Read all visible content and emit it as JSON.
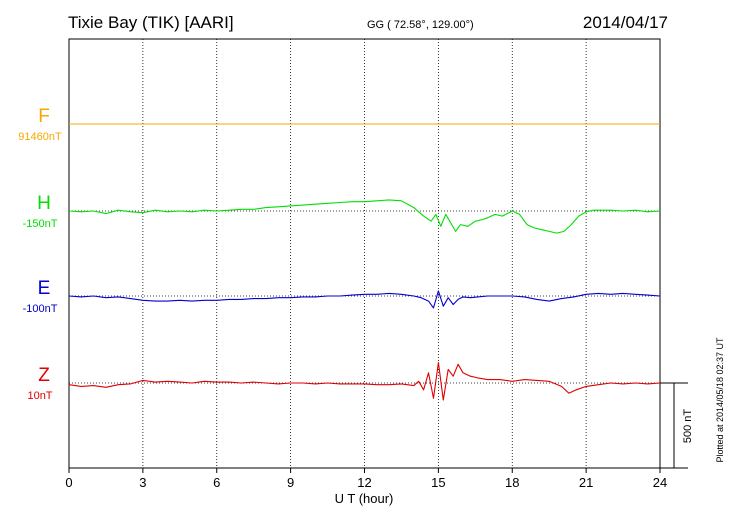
{
  "chart_data": {
    "type": "line",
    "title": "Tixie Bay (TIK)  [AARI]",
    "coords": "GG ( 72.58°, 129.00°)",
    "date": "2014/04/17",
    "xlabel": "U T (hour)",
    "xlim": [
      0,
      24
    ],
    "x_ticks": [
      0,
      3,
      6,
      9,
      12,
      15,
      18,
      21,
      24
    ],
    "x_tick_labels": [
      "0",
      "3",
      "6",
      "9",
      "12",
      "15",
      "18",
      "21",
      "24"
    ],
    "grid": true,
    "scale_bar_label": "500 nT",
    "scale_bar_nT": 500,
    "plotted_note": "Plotted at 2014/05/18 02:37 UT",
    "series": [
      {
        "name": "F",
        "base_label": "91460nT",
        "base_nT": 91460,
        "color": "#f5a800",
        "x": [
          0,
          1,
          2,
          3,
          4,
          5,
          6,
          7,
          8,
          9,
          10,
          11,
          12,
          13,
          14,
          15,
          16,
          17,
          18,
          19,
          20,
          21,
          22,
          23,
          24
        ],
        "y": [
          0,
          0,
          0,
          0,
          0,
          0,
          0,
          0,
          0,
          0,
          0,
          0,
          0,
          0,
          0,
          0,
          0,
          0,
          0,
          0,
          0,
          0,
          0,
          0,
          0
        ]
      },
      {
        "name": "H",
        "base_label": "-150nT",
        "base_nT": -150,
        "color": "#00e000",
        "x": [
          0,
          0.5,
          1,
          1.5,
          2,
          2.5,
          3,
          3.5,
          4,
          4.5,
          5,
          5.5,
          6,
          6.5,
          7,
          7.5,
          8,
          8.5,
          9,
          9.5,
          10,
          10.5,
          11,
          11.5,
          12,
          12.5,
          13,
          13.5,
          14,
          14.4,
          14.7,
          14.9,
          15.1,
          15.3,
          15.5,
          15.7,
          15.9,
          16.2,
          16.5,
          16.8,
          17,
          17.3,
          17.6,
          18,
          18.3,
          18.6,
          18.9,
          19.2,
          19.5,
          19.8,
          20.1,
          20.4,
          20.7,
          21,
          21.3,
          21.6,
          22,
          22.5,
          23,
          23.5,
          24
        ],
        "y": [
          0,
          -5,
          0,
          -15,
          5,
          -5,
          -10,
          5,
          -5,
          0,
          -5,
          5,
          0,
          5,
          10,
          10,
          20,
          25,
          30,
          35,
          40,
          45,
          50,
          55,
          55,
          60,
          65,
          60,
          20,
          -30,
          -60,
          -20,
          -90,
          -20,
          -70,
          -120,
          -80,
          -90,
          -60,
          -50,
          -40,
          -20,
          -30,
          0,
          -20,
          -80,
          -100,
          -110,
          -120,
          -130,
          -120,
          -80,
          -30,
          -5,
          5,
          5,
          5,
          0,
          5,
          -5,
          0
        ]
      },
      {
        "name": "E",
        "base_label": "-100nT",
        "base_nT": -100,
        "color": "#0000d0",
        "x": [
          0,
          0.5,
          1,
          1.5,
          2,
          2.5,
          3,
          3.5,
          4,
          4.5,
          5,
          5.5,
          6,
          6.5,
          7,
          7.5,
          8,
          8.5,
          9,
          9.5,
          10,
          10.5,
          11,
          11.5,
          12,
          12.5,
          13,
          13.5,
          14,
          14.3,
          14.6,
          14.8,
          15,
          15.2,
          15.4,
          15.6,
          15.8,
          16,
          16.3,
          16.6,
          17,
          17.5,
          18,
          18.5,
          19,
          19.5,
          20,
          20.5,
          21,
          21.5,
          22,
          22.5,
          23,
          23.5,
          24
        ],
        "y": [
          0,
          -5,
          0,
          -10,
          -5,
          -15,
          -25,
          -30,
          -30,
          -25,
          -30,
          -25,
          -25,
          -20,
          -20,
          -15,
          -15,
          -10,
          -10,
          -5,
          -5,
          0,
          0,
          5,
          10,
          10,
          15,
          10,
          0,
          -10,
          -30,
          -70,
          30,
          -60,
          -10,
          -50,
          -20,
          -5,
          -10,
          -5,
          0,
          0,
          0,
          -5,
          -20,
          -30,
          -15,
          -5,
          10,
          15,
          10,
          15,
          10,
          5,
          0
        ]
      },
      {
        "name": "Z",
        "base_label": "10nT",
        "base_nT": 10,
        "color": "#e00000",
        "x": [
          0,
          0.5,
          1,
          1.5,
          2,
          2.5,
          3,
          3.5,
          4,
          4.5,
          5,
          5.5,
          6,
          6.5,
          7,
          7.5,
          8,
          8.5,
          9,
          9.5,
          10,
          10.5,
          11,
          11.5,
          12,
          12.5,
          13,
          13.5,
          14,
          14.2,
          14.4,
          14.6,
          14.8,
          15,
          15.2,
          15.4,
          15.6,
          15.8,
          16,
          16.3,
          16.6,
          17,
          17.5,
          18,
          18.5,
          19,
          19.5,
          20,
          20.3,
          20.6,
          21,
          21.5,
          22,
          22.5,
          23,
          23.5,
          24
        ],
        "y": [
          -10,
          -20,
          -15,
          -25,
          -10,
          -5,
          15,
          5,
          10,
          5,
          0,
          10,
          5,
          5,
          0,
          5,
          0,
          -5,
          0,
          0,
          -5,
          0,
          -5,
          -5,
          -5,
          -10,
          -10,
          -5,
          -15,
          10,
          -40,
          60,
          -90,
          120,
          -100,
          80,
          40,
          110,
          60,
          40,
          30,
          20,
          20,
          10,
          20,
          15,
          10,
          -20,
          -60,
          -40,
          -20,
          -10,
          0,
          -5,
          0,
          -5,
          0
        ]
      }
    ]
  }
}
